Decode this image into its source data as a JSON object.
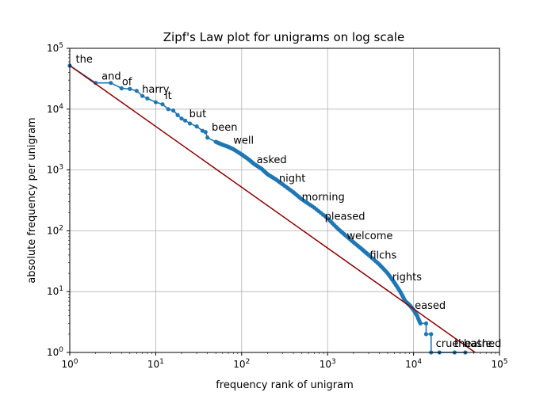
{
  "chart_data": {
    "type": "line",
    "title": "Zipf's Law plot for unigrams on log scale",
    "xlabel": "frequency rank of unigram",
    "ylabel": "absolute frequency per unigram",
    "xscale": "log",
    "yscale": "log",
    "xlim": [
      1,
      100000
    ],
    "ylim": [
      1,
      100000
    ],
    "grid": true,
    "x_ticks": [
      {
        "value": 1,
        "base": "10",
        "exp": "0"
      },
      {
        "value": 10,
        "base": "10",
        "exp": "1"
      },
      {
        "value": 100,
        "base": "10",
        "exp": "2"
      },
      {
        "value": 1000,
        "base": "10",
        "exp": "3"
      },
      {
        "value": 10000,
        "base": "10",
        "exp": "4"
      },
      {
        "value": 100000,
        "base": "10",
        "exp": "5"
      }
    ],
    "y_ticks": [
      {
        "value": 1,
        "base": "10",
        "exp": "0"
      },
      {
        "value": 10,
        "base": "10",
        "exp": "1"
      },
      {
        "value": 100,
        "base": "10",
        "exp": "2"
      },
      {
        "value": 1000,
        "base": "10",
        "exp": "3"
      },
      {
        "value": 10000,
        "base": "10",
        "exp": "4"
      },
      {
        "value": 100000,
        "base": "10",
        "exp": "5"
      }
    ],
    "series": [
      {
        "color": "#1f77b4",
        "marker": "dot",
        "points": [
          [
            1,
            52000
          ],
          [
            2,
            27000
          ],
          [
            3,
            27000
          ],
          [
            4,
            22000
          ],
          [
            5,
            21500
          ],
          [
            6,
            20000
          ],
          [
            7,
            16500
          ],
          [
            8,
            15000
          ],
          [
            10,
            13000
          ],
          [
            12,
            12000
          ],
          [
            14,
            10000
          ],
          [
            16,
            9500
          ],
          [
            18,
            8000
          ],
          [
            20,
            7000
          ],
          [
            22,
            6500
          ],
          [
            25,
            5800
          ],
          [
            30,
            5200
          ],
          [
            35,
            4400
          ],
          [
            38,
            4200
          ],
          [
            40,
            3400
          ],
          [
            50,
            2900
          ],
          [
            60,
            2600
          ],
          [
            70,
            2400
          ],
          [
            80,
            2200
          ],
          [
            100,
            1800
          ],
          [
            120,
            1500
          ],
          [
            140,
            1250
          ],
          [
            170,
            1050
          ],
          [
            200,
            850
          ],
          [
            250,
            700
          ],
          [
            300,
            580
          ],
          [
            400,
            430
          ],
          [
            500,
            330
          ],
          [
            700,
            240
          ],
          [
            1000,
            160
          ],
          [
            1300,
            110
          ],
          [
            1600,
            85
          ],
          [
            2000,
            65
          ],
          [
            2500,
            50
          ],
          [
            3000,
            40
          ],
          [
            4000,
            28
          ],
          [
            5000,
            20
          ],
          [
            6000,
            14
          ],
          [
            7000,
            10
          ],
          [
            8000,
            7
          ],
          [
            9000,
            6
          ],
          [
            10000,
            5
          ],
          [
            11000,
            4
          ],
          [
            12000,
            3
          ],
          [
            14000,
            3
          ],
          [
            14000,
            2
          ],
          [
            16000,
            2
          ],
          [
            16000,
            1
          ],
          [
            20000,
            1
          ],
          [
            30000,
            1
          ],
          [
            40000,
            1
          ]
        ]
      },
      {
        "color": "#8b0000",
        "marker": "none",
        "points": [
          [
            1,
            52000
          ],
          [
            52000,
            1
          ]
        ]
      }
    ],
    "annotations": [
      {
        "text": "the",
        "x": 1.1,
        "y": 52000
      },
      {
        "text": "and",
        "x": 2.2,
        "y": 27000
      },
      {
        "text": "of",
        "x": 3.8,
        "y": 22000
      },
      {
        "text": "harry",
        "x": 6.5,
        "y": 16500
      },
      {
        "text": "it",
        "x": 12,
        "y": 13000
      },
      {
        "text": "but",
        "x": 23,
        "y": 6500
      },
      {
        "text": "been",
        "x": 42,
        "y": 3900
      },
      {
        "text": "well",
        "x": 75,
        "y": 2400
      },
      {
        "text": "asked",
        "x": 140,
        "y": 1150
      },
      {
        "text": "night",
        "x": 255,
        "y": 570
      },
      {
        "text": "morning",
        "x": 470,
        "y": 280
      },
      {
        "text": "pleased",
        "x": 870,
        "y": 135
      },
      {
        "text": "welcome",
        "x": 1570,
        "y": 65
      },
      {
        "text": "filchs",
        "x": 2900,
        "y": 31
      },
      {
        "text": "rights",
        "x": 5300,
        "y": 13.5
      },
      {
        "text": "eased",
        "x": 9700,
        "y": 4.6
      },
      {
        "text": "crue",
        "x": 17000,
        "y": 1.1
      },
      {
        "text": "theatre",
        "x": 28000,
        "y": 1.1
      },
      {
        "text": "bashed",
        "x": 36000,
        "y": 1.1
      }
    ]
  }
}
